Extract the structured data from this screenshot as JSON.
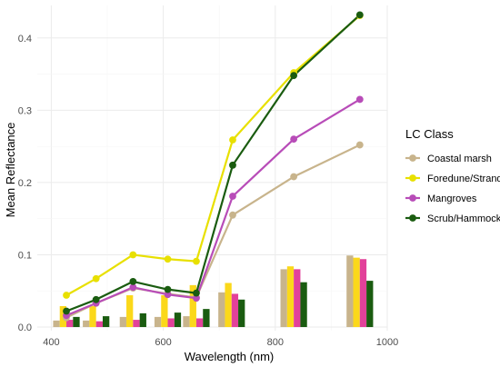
{
  "chart_data": {
    "type": "line",
    "xlabel": "Wavelength (nm)",
    "ylabel": "Mean Reflectance",
    "xlim": [
      375,
      1000
    ],
    "ylim": [
      -0.005,
      0.445
    ],
    "x_ticks": [
      400,
      600,
      800,
      1000
    ],
    "y_ticks": [
      0.0,
      0.1,
      0.2,
      0.3,
      0.4
    ],
    "y_tick_labels": [
      "0.0",
      "0.1",
      "0.2",
      "0.3",
      "0.4"
    ],
    "grid": true,
    "legend_title": "LC Class",
    "legend_position": "right",
    "x": [
      427,
      480,
      546,
      608,
      659,
      724,
      833,
      951
    ],
    "series": [
      {
        "name": "Coastal marsh",
        "color": "#c8b48c",
        "values": [
          0.013,
          0.033,
          0.054,
          0.046,
          0.041,
          0.155,
          0.208,
          0.252
        ]
      },
      {
        "name": "Foredune/Strand",
        "color": "#e8e000",
        "values": [
          0.044,
          0.067,
          0.1,
          0.094,
          0.091,
          0.259,
          0.352,
          0.431
        ]
      },
      {
        "name": "Mangroves",
        "color": "#b84cb8",
        "values": [
          0.016,
          0.033,
          0.055,
          0.045,
          0.04,
          0.181,
          0.26,
          0.315
        ]
      },
      {
        "name": "Scrub/Hammock",
        "color": "#1a5c10",
        "values": [
          0.022,
          0.038,
          0.063,
          0.052,
          0.047,
          0.224,
          0.348,
          0.432
        ]
      }
    ],
    "bars": {
      "centers": [
        427,
        480,
        546,
        608,
        659,
        722,
        833,
        951
      ],
      "series": [
        {
          "name": "Coastal marsh",
          "color": "#c8b48c",
          "values": [
            0.009,
            0.009,
            0.014,
            0.014,
            0.015,
            0.048,
            0.08,
            0.099
          ]
        },
        {
          "name": "Foredune/Strand",
          "color": "#fbd81a",
          "values": [
            0.029,
            0.029,
            0.044,
            0.044,
            0.058,
            0.061,
            0.084,
            0.096
          ]
        },
        {
          "name": "Mangroves",
          "color": "#e2419a",
          "values": [
            0.01,
            0.008,
            0.01,
            0.012,
            0.012,
            0.046,
            0.08,
            0.094
          ]
        },
        {
          "name": "Scrub/Hammock",
          "color": "#1a5c10",
          "values": [
            0.014,
            0.015,
            0.019,
            0.02,
            0.025,
            0.038,
            0.062,
            0.064
          ]
        }
      ]
    }
  }
}
